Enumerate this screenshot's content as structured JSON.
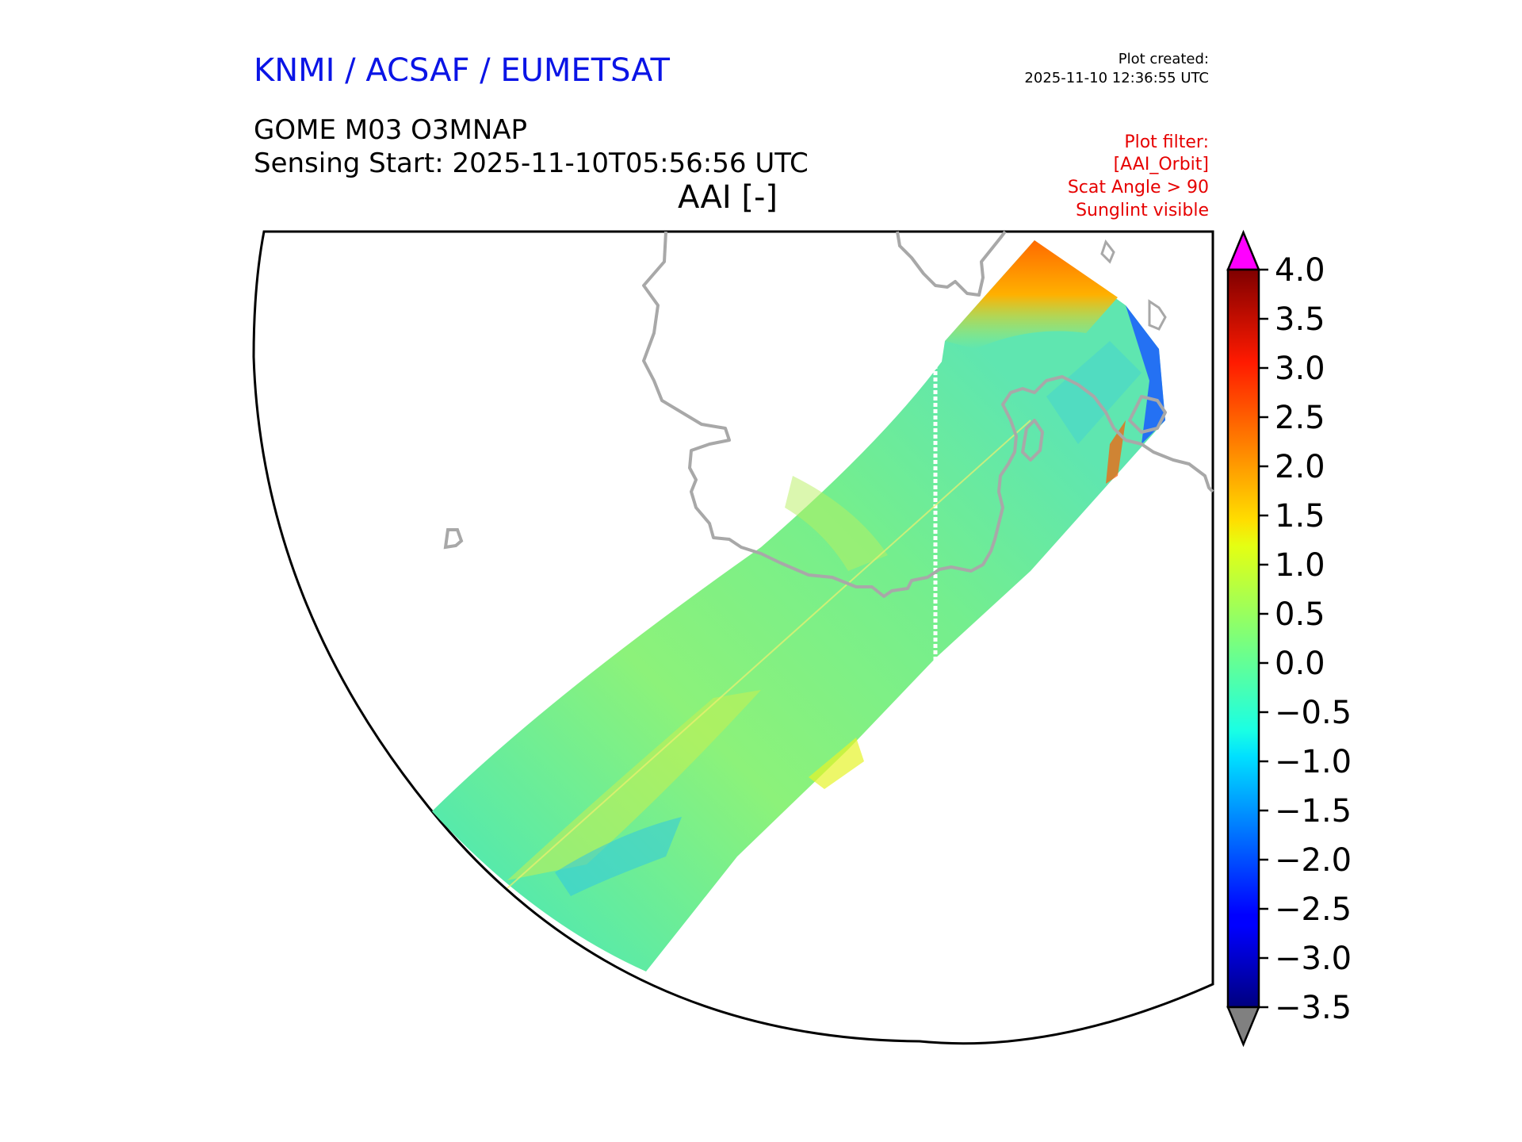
{
  "header": {
    "organization": "KNMI / ACSAF / EUMETSAT",
    "plot_created_label": "Plot created:",
    "plot_created_time": "2025-11-10 12:36:55 UTC",
    "product": "GOME M03 O3MNAP",
    "sensing_start": "Sensing Start: 2025-11-10T05:56:56 UTC",
    "variable_title": "AAI [-]"
  },
  "plot_filter": {
    "lines": [
      "Plot filter:",
      "[AAI_Orbit]",
      "Scat Angle > 90",
      "Sunglint visible"
    ]
  },
  "colors": {
    "organization": "#0a14e6",
    "filter_text": "#e60000",
    "coastline": "#a8a8a8",
    "over_range": "#ff00ff",
    "under_range": "#808080"
  },
  "chart_data": {
    "type": "heatmap",
    "title": "AAI [-]",
    "colorbar": {
      "min": -3.5,
      "max": 4.0,
      "ticks": [
        "4.0",
        "3.5",
        "3.0",
        "2.5",
        "2.0",
        "1.5",
        "1.0",
        "0.5",
        "0.0",
        "−0.5",
        "−1.0",
        "−1.5",
        "−2.0",
        "−2.5",
        "−3.0",
        "−3.5"
      ],
      "extend": "both",
      "colormap": "jet"
    }
  }
}
